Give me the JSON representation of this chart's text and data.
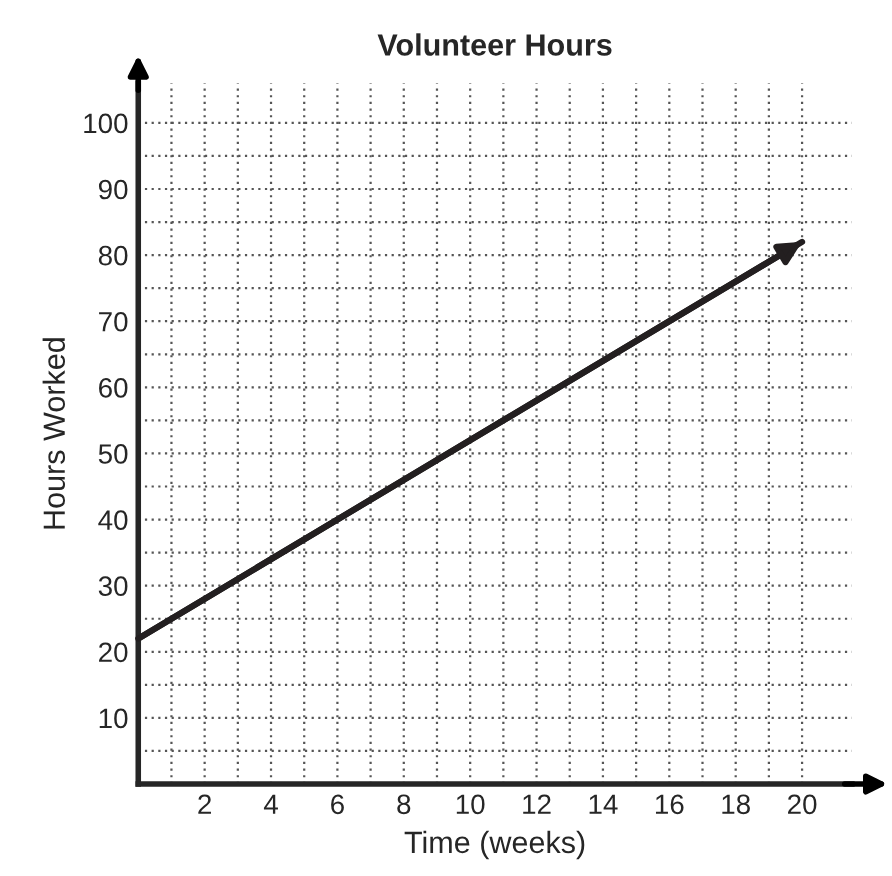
{
  "chart_data": {
    "type": "line",
    "title": "Volunteer Hours",
    "xlabel": "Time (weeks)",
    "ylabel": "Hours Worked",
    "x": [
      0,
      20
    ],
    "series": [
      {
        "color": "#231f20",
        "values": [
          22,
          82
        ]
      }
    ],
    "xlim": [
      0,
      21.5
    ],
    "ylim": [
      0,
      106
    ],
    "xticks": [
      {
        "value": 1,
        "label": null
      },
      2,
      {
        "value": 3,
        "label": null
      },
      4,
      {
        "value": 5,
        "label": null
      },
      6,
      {
        "value": 7,
        "label": null
      },
      8,
      {
        "value": 9,
        "label": null
      },
      10,
      {
        "value": 11,
        "label": null
      },
      12,
      {
        "value": 13,
        "label": null
      },
      14,
      {
        "value": 15,
        "label": null
      },
      16,
      {
        "value": 17,
        "label": null
      },
      18,
      {
        "value": 19,
        "label": null
      },
      20
    ],
    "yticks": [
      {
        "value": 5,
        "label": null
      },
      10,
      {
        "value": 15,
        "label": null
      },
      20,
      {
        "value": 25,
        "label": null
      },
      30,
      {
        "value": 35,
        "label": null
      },
      40,
      {
        "value": 45,
        "label": null
      },
      50,
      {
        "value": 55,
        "label": null
      },
      60,
      {
        "value": 65,
        "label": null
      },
      70,
      {
        "value": 75,
        "label": null
      },
      80,
      {
        "value": 85,
        "label": null
      },
      90,
      {
        "value": 95,
        "label": null
      },
      100
    ],
    "grid": true,
    "marker": "none",
    "line_style": "solid",
    "legend": false
  }
}
